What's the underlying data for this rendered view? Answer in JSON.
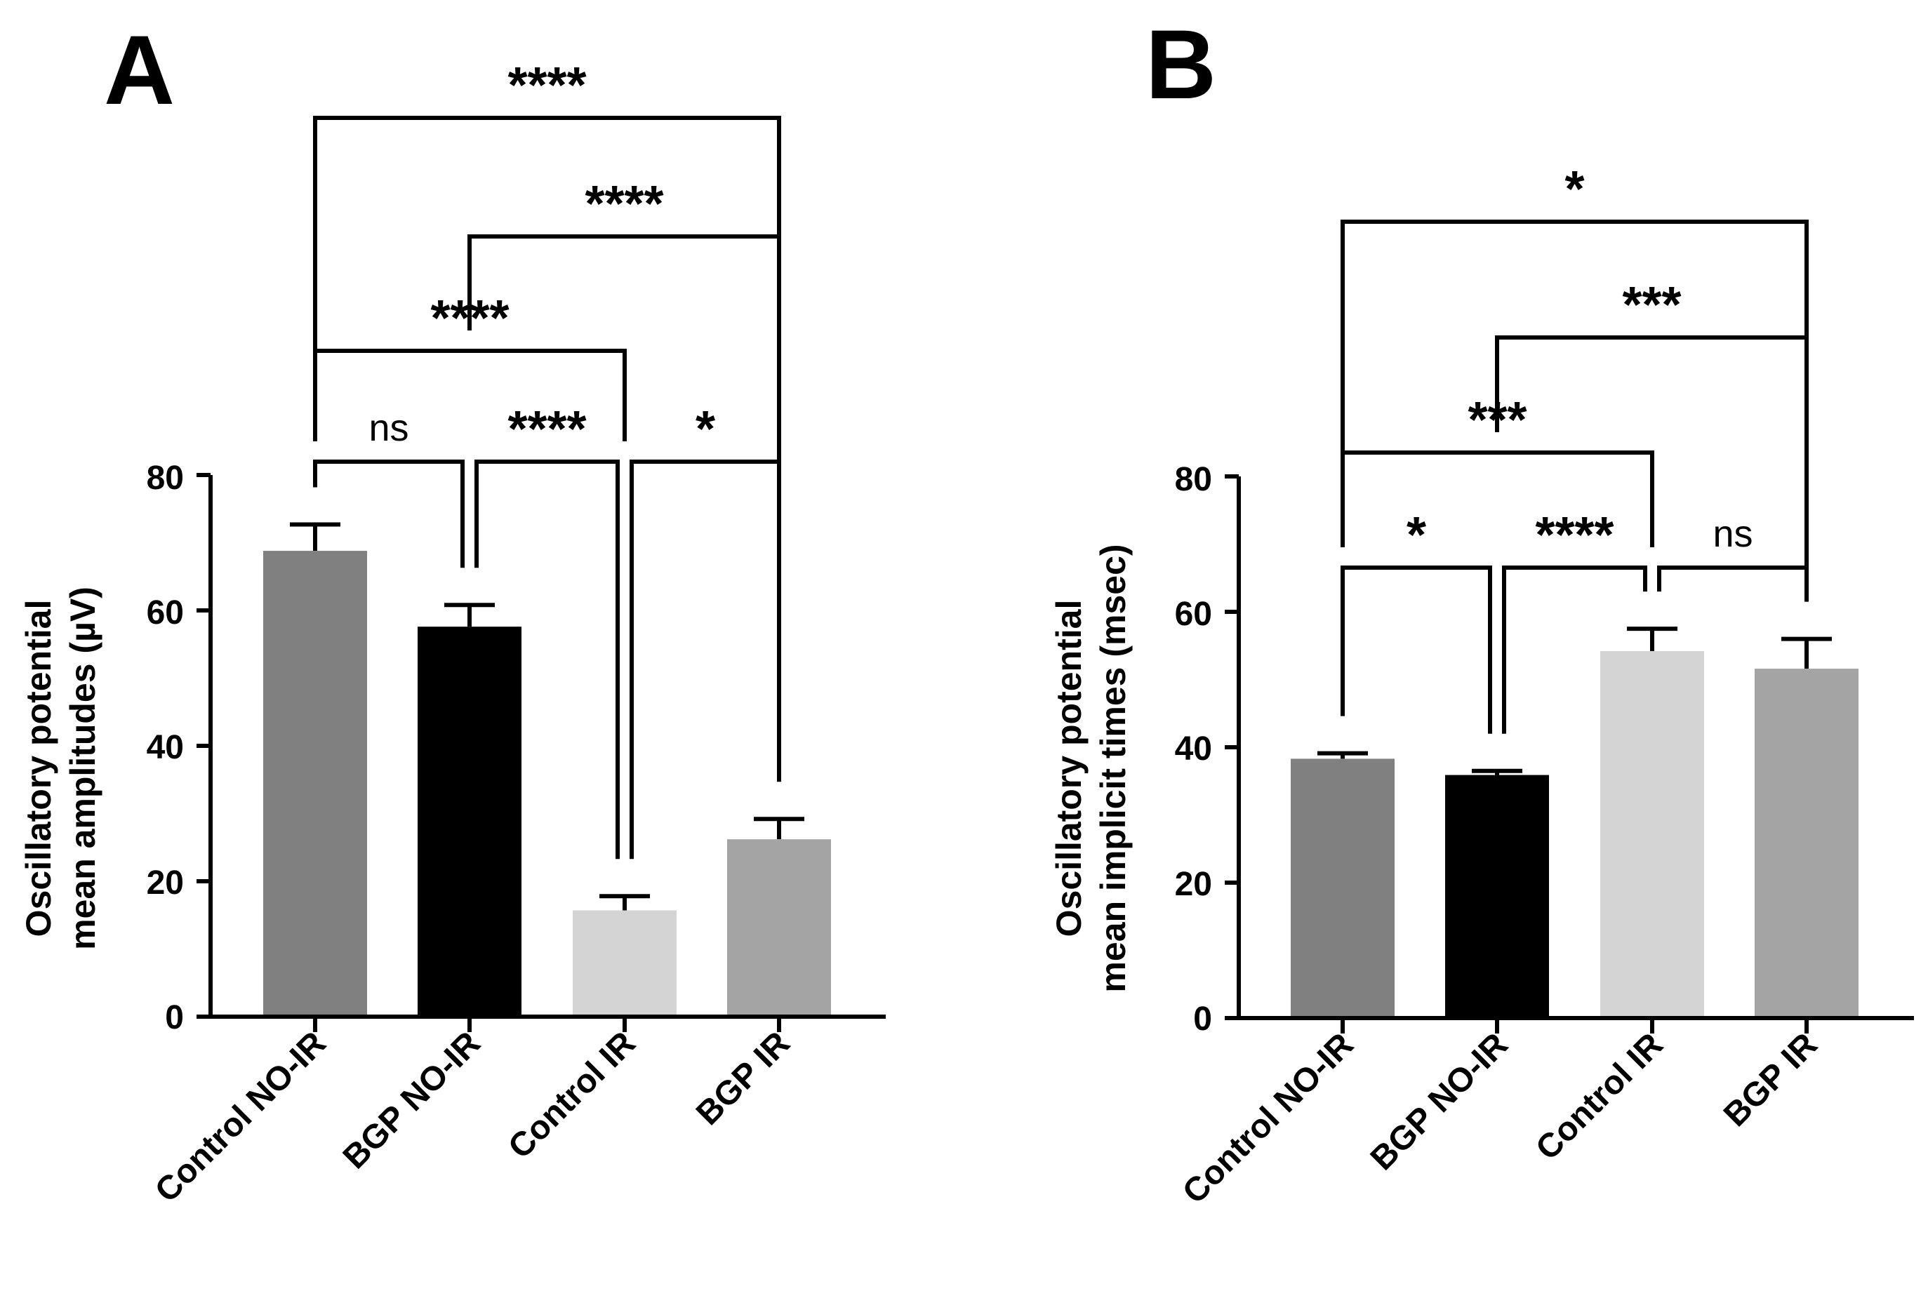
{
  "chart_data": [
    {
      "type": "bar",
      "panel": "A",
      "title": "",
      "xlabel": "",
      "ylabel_lines": [
        "Oscillatory potential",
        "mean amplitudes (µV)"
      ],
      "ylim": [
        0,
        80
      ],
      "yticks": [
        "0",
        "20",
        "40",
        "60",
        "80"
      ],
      "categories": [
        "Control NO-IR",
        "BGP NO-IR",
        "Control IR",
        "BGP IR"
      ],
      "values": [
        68.8,
        57.6,
        15.7,
        26.2
      ],
      "errors": [
        3.9,
        3.2,
        2.1,
        3.0
      ],
      "colors": [
        "#808080",
        "#000000",
        "#d4d4d4",
        "#a4a4a4"
      ],
      "comparisons": [
        {
          "from": 0,
          "to": 1,
          "label": "ns"
        },
        {
          "from": 1,
          "to": 2,
          "label": "****"
        },
        {
          "from": 2,
          "to": 3,
          "label": "*"
        },
        {
          "from": 0,
          "to": 2,
          "label": "****"
        },
        {
          "from": 1,
          "to": 3,
          "label": "****"
        },
        {
          "from": 0,
          "to": 3,
          "label": "****"
        }
      ]
    },
    {
      "type": "bar",
      "panel": "B",
      "title": "",
      "xlabel": "",
      "ylabel_lines": [
        "Oscillatory potential",
        "mean implicit times (msec)"
      ],
      "ylim": [
        0,
        80
      ],
      "yticks": [
        "0",
        "20",
        "40",
        "60",
        "80"
      ],
      "categories": [
        "Control NO-IR",
        "BGP NO-IR",
        "Control IR",
        "BGP IR"
      ],
      "values": [
        38.3,
        35.9,
        54.2,
        51.6
      ],
      "errors": [
        0.8,
        0.6,
        3.3,
        4.4
      ],
      "colors": [
        "#808080",
        "#000000",
        "#d4d4d4",
        "#a4a4a4"
      ],
      "comparisons": [
        {
          "from": 0,
          "to": 1,
          "label": "*"
        },
        {
          "from": 1,
          "to": 2,
          "label": "****"
        },
        {
          "from": 2,
          "to": 3,
          "label": "ns"
        },
        {
          "from": 0,
          "to": 2,
          "label": "***"
        },
        {
          "from": 1,
          "to": 3,
          "label": "***"
        },
        {
          "from": 0,
          "to": 3,
          "label": "*"
        }
      ]
    }
  ]
}
